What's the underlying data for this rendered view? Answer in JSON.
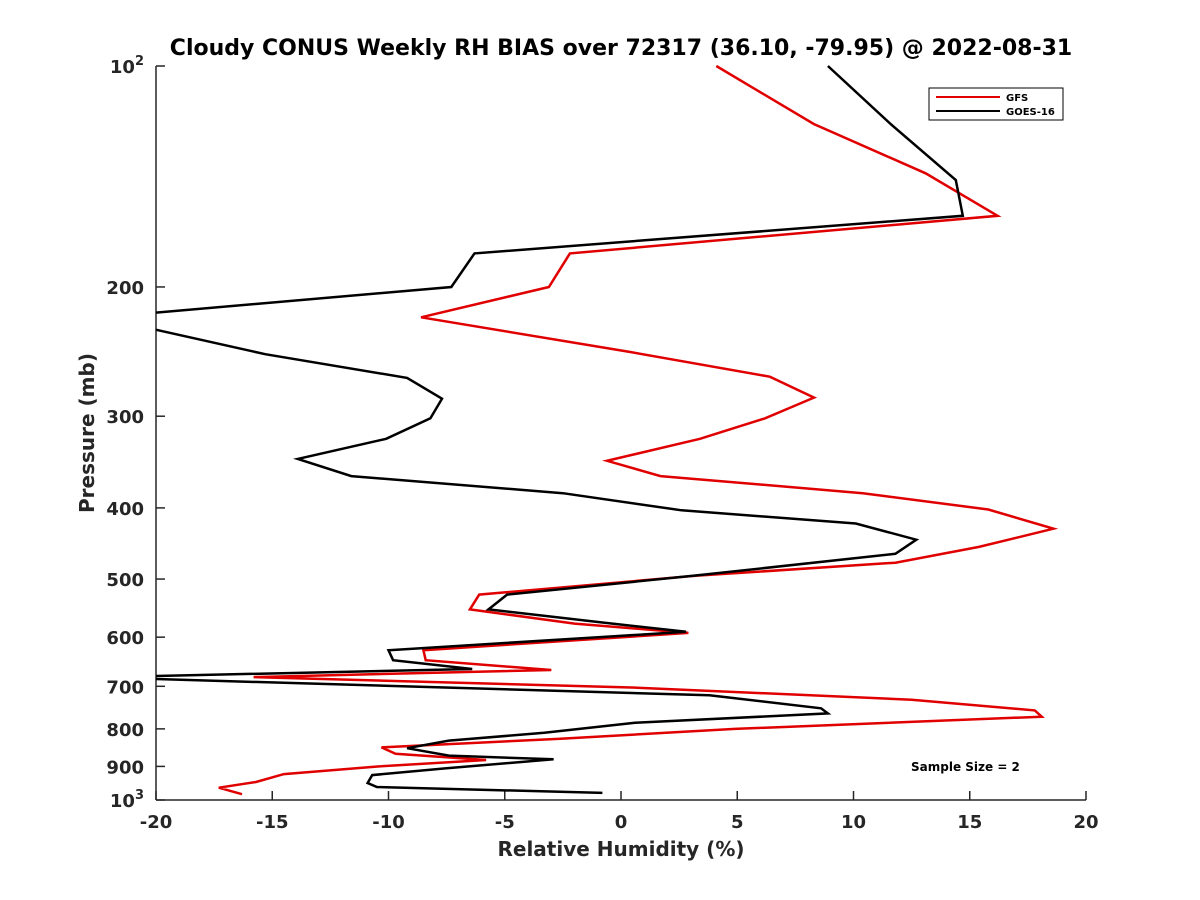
{
  "chart_data": {
    "type": "line",
    "title": "Cloudy CONUS Weekly RH BIAS over 72317 (36.10, -79.95) @ 2022-08-31",
    "xlabel": "Relative Humidity (%)",
    "ylabel": "Pressure (mb)",
    "xlim": [
      -20,
      20
    ],
    "ylim": [
      100,
      1000
    ],
    "y_scale": "log",
    "y_reversed": true,
    "grid": false,
    "legend_position": "top-right",
    "annotation": "Sample Size = 2",
    "x_ticks": [
      {
        "value": -20,
        "label": "-20"
      },
      {
        "value": -15,
        "label": "-15"
      },
      {
        "value": -10,
        "label": "-10"
      },
      {
        "value": -5,
        "label": "-5"
      },
      {
        "value": 0,
        "label": "0"
      },
      {
        "value": 5,
        "label": "5"
      },
      {
        "value": 10,
        "label": "10"
      },
      {
        "value": 15,
        "label": "15"
      },
      {
        "value": 20,
        "label": "20"
      }
    ],
    "y_ticks": [
      {
        "value": 100,
        "label": "10",
        "sup": "2"
      },
      {
        "value": 200,
        "label": "200",
        "sup": ""
      },
      {
        "value": 300,
        "label": "300",
        "sup": ""
      },
      {
        "value": 400,
        "label": "400",
        "sup": ""
      },
      {
        "value": 500,
        "label": "500",
        "sup": ""
      },
      {
        "value": 600,
        "label": "600",
        "sup": ""
      },
      {
        "value": 700,
        "label": "700",
        "sup": ""
      },
      {
        "value": 800,
        "label": "800",
        "sup": ""
      },
      {
        "value": 900,
        "label": "900",
        "sup": ""
      },
      {
        "value": 1000,
        "label": "10",
        "sup": "3"
      }
    ],
    "series": [
      {
        "name": "GFS",
        "color": "#e00000",
        "points": [
          {
            "x": 4.1,
            "p": 100
          },
          {
            "x": 8.3,
            "p": 120
          },
          {
            "x": 13.1,
            "p": 140
          },
          {
            "x": 16.2,
            "p": 160
          },
          {
            "x": -2.2,
            "p": 180
          },
          {
            "x": -3.1,
            "p": 200
          },
          {
            "x": -8.6,
            "p": 220
          },
          {
            "x": 0.3,
            "p": 245
          },
          {
            "x": 6.4,
            "p": 265
          },
          {
            "x": 8.3,
            "p": 283
          },
          {
            "x": 6.2,
            "p": 302
          },
          {
            "x": 3.4,
            "p": 322
          },
          {
            "x": -0.6,
            "p": 345
          },
          {
            "x": 1.7,
            "p": 362
          },
          {
            "x": 10.4,
            "p": 382
          },
          {
            "x": 15.8,
            "p": 402
          },
          {
            "x": 18.6,
            "p": 427
          },
          {
            "x": 15.4,
            "p": 452
          },
          {
            "x": 11.8,
            "p": 475
          },
          {
            "x": 3.2,
            "p": 495
          },
          {
            "x": -6.1,
            "p": 525
          },
          {
            "x": -6.5,
            "p": 550
          },
          {
            "x": -2.0,
            "p": 575
          },
          {
            "x": 2.9,
            "p": 592
          },
          {
            "x": -8.5,
            "p": 625
          },
          {
            "x": -8.4,
            "p": 645
          },
          {
            "x": -3.0,
            "p": 665
          },
          {
            "x": -15.8,
            "p": 680
          },
          {
            "x": 0.7,
            "p": 703
          },
          {
            "x": 12.5,
            "p": 730
          },
          {
            "x": 17.8,
            "p": 755
          },
          {
            "x": 18.1,
            "p": 770
          },
          {
            "x": 4.9,
            "p": 800
          },
          {
            "x": -2.6,
            "p": 825
          },
          {
            "x": -10.3,
            "p": 848
          },
          {
            "x": -9.7,
            "p": 865
          },
          {
            "x": -5.8,
            "p": 882
          },
          {
            "x": -10.4,
            "p": 900
          },
          {
            "x": -14.5,
            "p": 922
          },
          {
            "x": -15.7,
            "p": 945
          },
          {
            "x": -17.3,
            "p": 962
          },
          {
            "x": -16.3,
            "p": 982
          }
        ]
      },
      {
        "name": "GOES-16",
        "color": "#000000",
        "points": [
          {
            "x": 8.9,
            "p": 100
          },
          {
            "x": 11.6,
            "p": 120
          },
          {
            "x": 14.4,
            "p": 143
          },
          {
            "x": 14.7,
            "p": 160
          },
          {
            "x": -6.3,
            "p": 180
          },
          {
            "x": -7.3,
            "p": 200
          },
          {
            "x": -20.2,
            "p": 217
          },
          {
            "x": -20.2,
            "p": 228
          },
          {
            "x": -15.3,
            "p": 247
          },
          {
            "x": -9.2,
            "p": 266
          },
          {
            "x": -7.7,
            "p": 284
          },
          {
            "x": -8.2,
            "p": 302
          },
          {
            "x": -10.1,
            "p": 322
          },
          {
            "x": -13.9,
            "p": 343
          },
          {
            "x": -11.6,
            "p": 362
          },
          {
            "x": -2.5,
            "p": 382
          },
          {
            "x": 2.6,
            "p": 403
          },
          {
            "x": 10.1,
            "p": 420
          },
          {
            "x": 12.7,
            "p": 442
          },
          {
            "x": 11.8,
            "p": 462
          },
          {
            "x": 3.1,
            "p": 495
          },
          {
            "x": -4.9,
            "p": 525
          },
          {
            "x": -5.7,
            "p": 550
          },
          {
            "x": -0.8,
            "p": 573
          },
          {
            "x": 2.8,
            "p": 590
          },
          {
            "x": -10.0,
            "p": 625
          },
          {
            "x": -9.8,
            "p": 645
          },
          {
            "x": -6.4,
            "p": 663
          },
          {
            "x": -20.2,
            "p": 678
          },
          {
            "x": -20.2,
            "p": 684
          },
          {
            "x": 3.8,
            "p": 720
          },
          {
            "x": 8.6,
            "p": 750
          },
          {
            "x": 8.9,
            "p": 762
          },
          {
            "x": 0.6,
            "p": 785
          },
          {
            "x": -3.3,
            "p": 810
          },
          {
            "x": -7.4,
            "p": 830
          },
          {
            "x": -9.2,
            "p": 850
          },
          {
            "x": -7.4,
            "p": 870
          },
          {
            "x": -2.9,
            "p": 880
          },
          {
            "x": -7.5,
            "p": 905
          },
          {
            "x": -10.7,
            "p": 925
          },
          {
            "x": -10.9,
            "p": 948
          },
          {
            "x": -10.5,
            "p": 960
          },
          {
            "x": -0.8,
            "p": 978
          }
        ]
      }
    ]
  }
}
